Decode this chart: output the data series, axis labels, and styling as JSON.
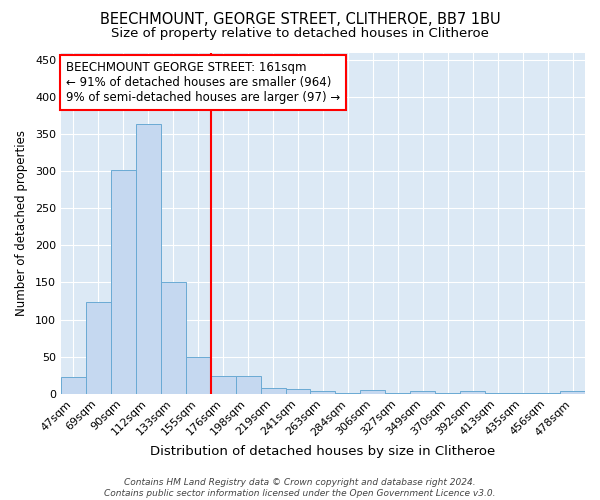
{
  "title1": "BEECHMOUNT, GEORGE STREET, CLITHEROE, BB7 1BU",
  "title2": "Size of property relative to detached houses in Clitheroe",
  "xlabel": "Distribution of detached houses by size in Clitheroe",
  "ylabel": "Number of detached properties",
  "footnote": "Contains HM Land Registry data © Crown copyright and database right 2024.\nContains public sector information licensed under the Open Government Licence v3.0.",
  "bar_labels": [
    "47sqm",
    "69sqm",
    "90sqm",
    "112sqm",
    "133sqm",
    "155sqm",
    "176sqm",
    "198sqm",
    "219sqm",
    "241sqm",
    "263sqm",
    "284sqm",
    "306sqm",
    "327sqm",
    "349sqm",
    "370sqm",
    "392sqm",
    "413sqm",
    "435sqm",
    "456sqm",
    "478sqm"
  ],
  "bar_values": [
    22,
    123,
    301,
    363,
    151,
    49,
    24,
    24,
    8,
    6,
    4,
    1,
    5,
    1,
    4,
    1,
    3,
    1,
    1,
    1,
    4
  ],
  "bar_color": "#c5d8f0",
  "bar_edge_color": "#6aaad4",
  "vline_x": 5.5,
  "vline_color": "red",
  "annotation_text": "BEECHMOUNT GEORGE STREET: 161sqm\n← 91% of detached houses are smaller (964)\n9% of semi-detached houses are larger (97) →",
  "annotation_box_color": "white",
  "annotation_box_edge": "red",
  "ylim": [
    0,
    460
  ],
  "yticks": [
    0,
    50,
    100,
    150,
    200,
    250,
    300,
    350,
    400,
    450
  ],
  "fig_bg_color": "#ffffff",
  "plot_bg_color": "#dce9f5",
  "title1_fontsize": 10.5,
  "title2_fontsize": 9.5,
  "xlabel_fontsize": 9.5,
  "ylabel_fontsize": 8.5,
  "annot_fontsize": 8.5,
  "tick_fontsize": 8.0,
  "footnote_fontsize": 6.5
}
